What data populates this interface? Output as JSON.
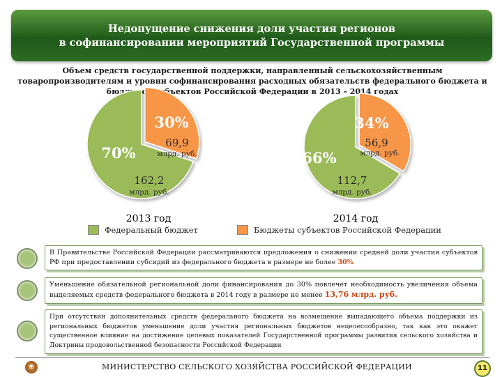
{
  "header": {
    "title_line1": "Недопущение снижения доли участия регионов",
    "title_line2": "в софинансировании мероприятий Государственной программы"
  },
  "subtitle": {
    "line1": "Объем средств государственной поддержки, направленный сельскохозяйственным",
    "line2": "товаропроизводителям и уровни софинансирования расходных обязательств федерального бюджета и",
    "line3": "бюджетов субъектов Российской Федерации в 2013 – 2014 годах"
  },
  "colors": {
    "federal": "#9bbb59",
    "regional": "#f79646",
    "header": "#2d6b22",
    "accent": "#c8420f"
  },
  "chart_data": [
    {
      "type": "pie",
      "title": "2013 год",
      "categories": [
        "Федеральный бюджет",
        "Бюджеты субъектов Российской Федерации"
      ],
      "values": [
        162.2,
        69.9
      ],
      "percent_labels": [
        "70%",
        "30%"
      ],
      "value_labels": [
        "162,2",
        "69,9"
      ],
      "unit_label": "млрд. руб."
    },
    {
      "type": "pie",
      "title": "2014 год",
      "categories": [
        "Федеральный бюджет",
        "Бюджеты субъектов Российской Федерации"
      ],
      "values": [
        112.7,
        56.9
      ],
      "percent_labels": [
        "66%",
        "34%"
      ],
      "value_labels": [
        "112,7",
        "56,9"
      ],
      "unit_label": "млрд. руб."
    }
  ],
  "legend": {
    "federal": "Федеральный бюджет",
    "regional": "Бюджеты субъектов Российской Федерации"
  },
  "points": {
    "p1_text": "В Правительстве Российской Федерации рассматриваются предложения о снижении средней доли участия субъектов РФ при предоставлении субсидий из федерального бюджета в размере не более ",
    "p1_highlight": "30%",
    "p2_text": "Уменьшение обязательной региональной доли финансирования до 30% повлечет необходимость увеличения объема выделяемых средств федерального бюджета в 2014 году в размере не менее ",
    "p2_highlight": "13,76 млрд. руб.",
    "p3_text": "При отсутствии дополнительных средств федерального бюджета на возмещение выпадающего объема поддержки из региональных бюджетов уменьшение доли участия региональных бюджетов нецелесообразно, так как это окажет существенное влияние на достижение целевых показателей Государственной программы развития сельского хозяйства и Доктрины продовольственной безопасности Российской Федерации"
  },
  "footer": {
    "ministry": "МИНИСТЕРСТВО СЕЛЬСКОГО ХОЗЯЙСТВА РОССИЙСКОЙ ФЕДЕРАЦИИ",
    "page_number": "11"
  }
}
